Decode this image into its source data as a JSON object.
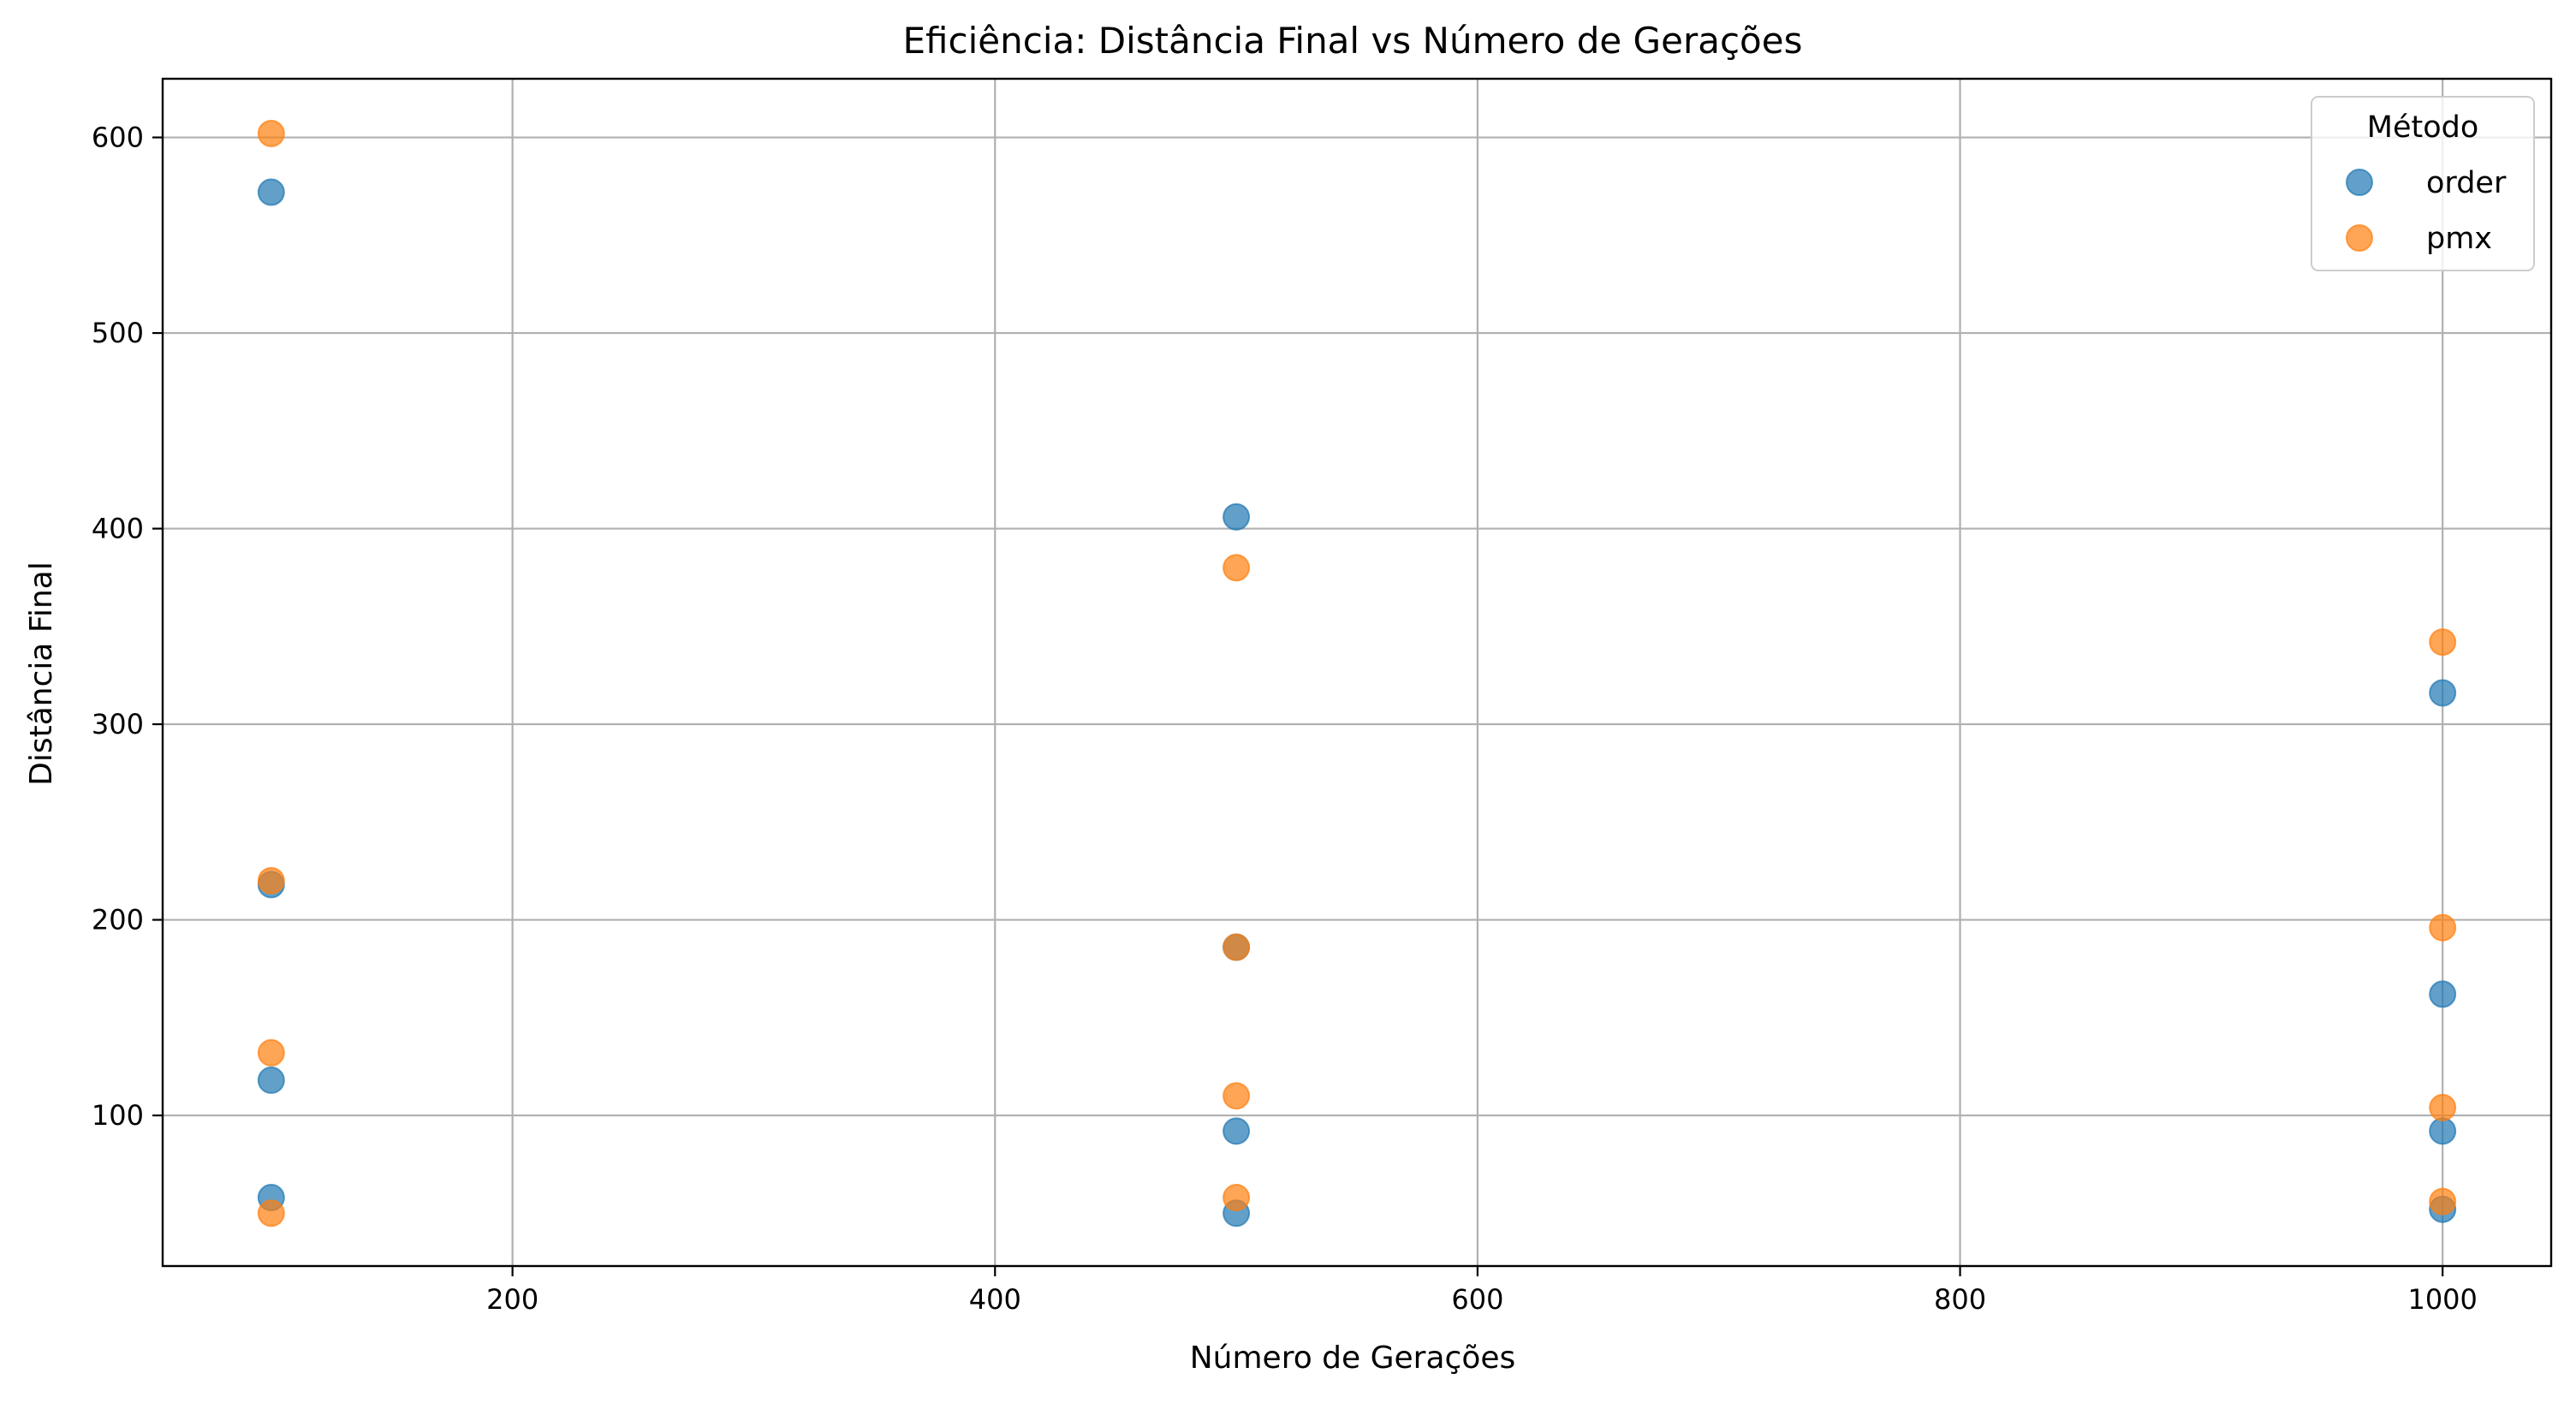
{
  "chart_data": {
    "type": "scatter",
    "title": "Eficiência: Distância Final vs Número de Gerações",
    "xlabel": "Número de Gerações",
    "ylabel": "Distância Final",
    "xlim": [
      55,
      1045
    ],
    "ylim": [
      23,
      630
    ],
    "xticks": [
      200,
      400,
      600,
      800,
      1000
    ],
    "yticks": [
      100,
      200,
      300,
      400,
      500,
      600
    ],
    "grid": true,
    "legend": {
      "title": "Método",
      "placement": "top-right"
    },
    "series": [
      {
        "name": "order",
        "color": "#1f77b4",
        "points": [
          {
            "x": 100,
            "y": 572
          },
          {
            "x": 100,
            "y": 218
          },
          {
            "x": 100,
            "y": 118
          },
          {
            "x": 100,
            "y": 58
          },
          {
            "x": 500,
            "y": 406
          },
          {
            "x": 500,
            "y": 186
          },
          {
            "x": 500,
            "y": 92
          },
          {
            "x": 500,
            "y": 50
          },
          {
            "x": 1000,
            "y": 316
          },
          {
            "x": 1000,
            "y": 162
          },
          {
            "x": 1000,
            "y": 92
          },
          {
            "x": 1000,
            "y": 52
          }
        ]
      },
      {
        "name": "pmx",
        "color": "#ff7f0e",
        "points": [
          {
            "x": 100,
            "y": 602
          },
          {
            "x": 100,
            "y": 220
          },
          {
            "x": 100,
            "y": 132
          },
          {
            "x": 100,
            "y": 50
          },
          {
            "x": 500,
            "y": 380
          },
          {
            "x": 500,
            "y": 186
          },
          {
            "x": 500,
            "y": 110
          },
          {
            "x": 500,
            "y": 58
          },
          {
            "x": 1000,
            "y": 342
          },
          {
            "x": 1000,
            "y": 196
          },
          {
            "x": 1000,
            "y": 104
          },
          {
            "x": 1000,
            "y": 56
          }
        ]
      }
    ]
  }
}
